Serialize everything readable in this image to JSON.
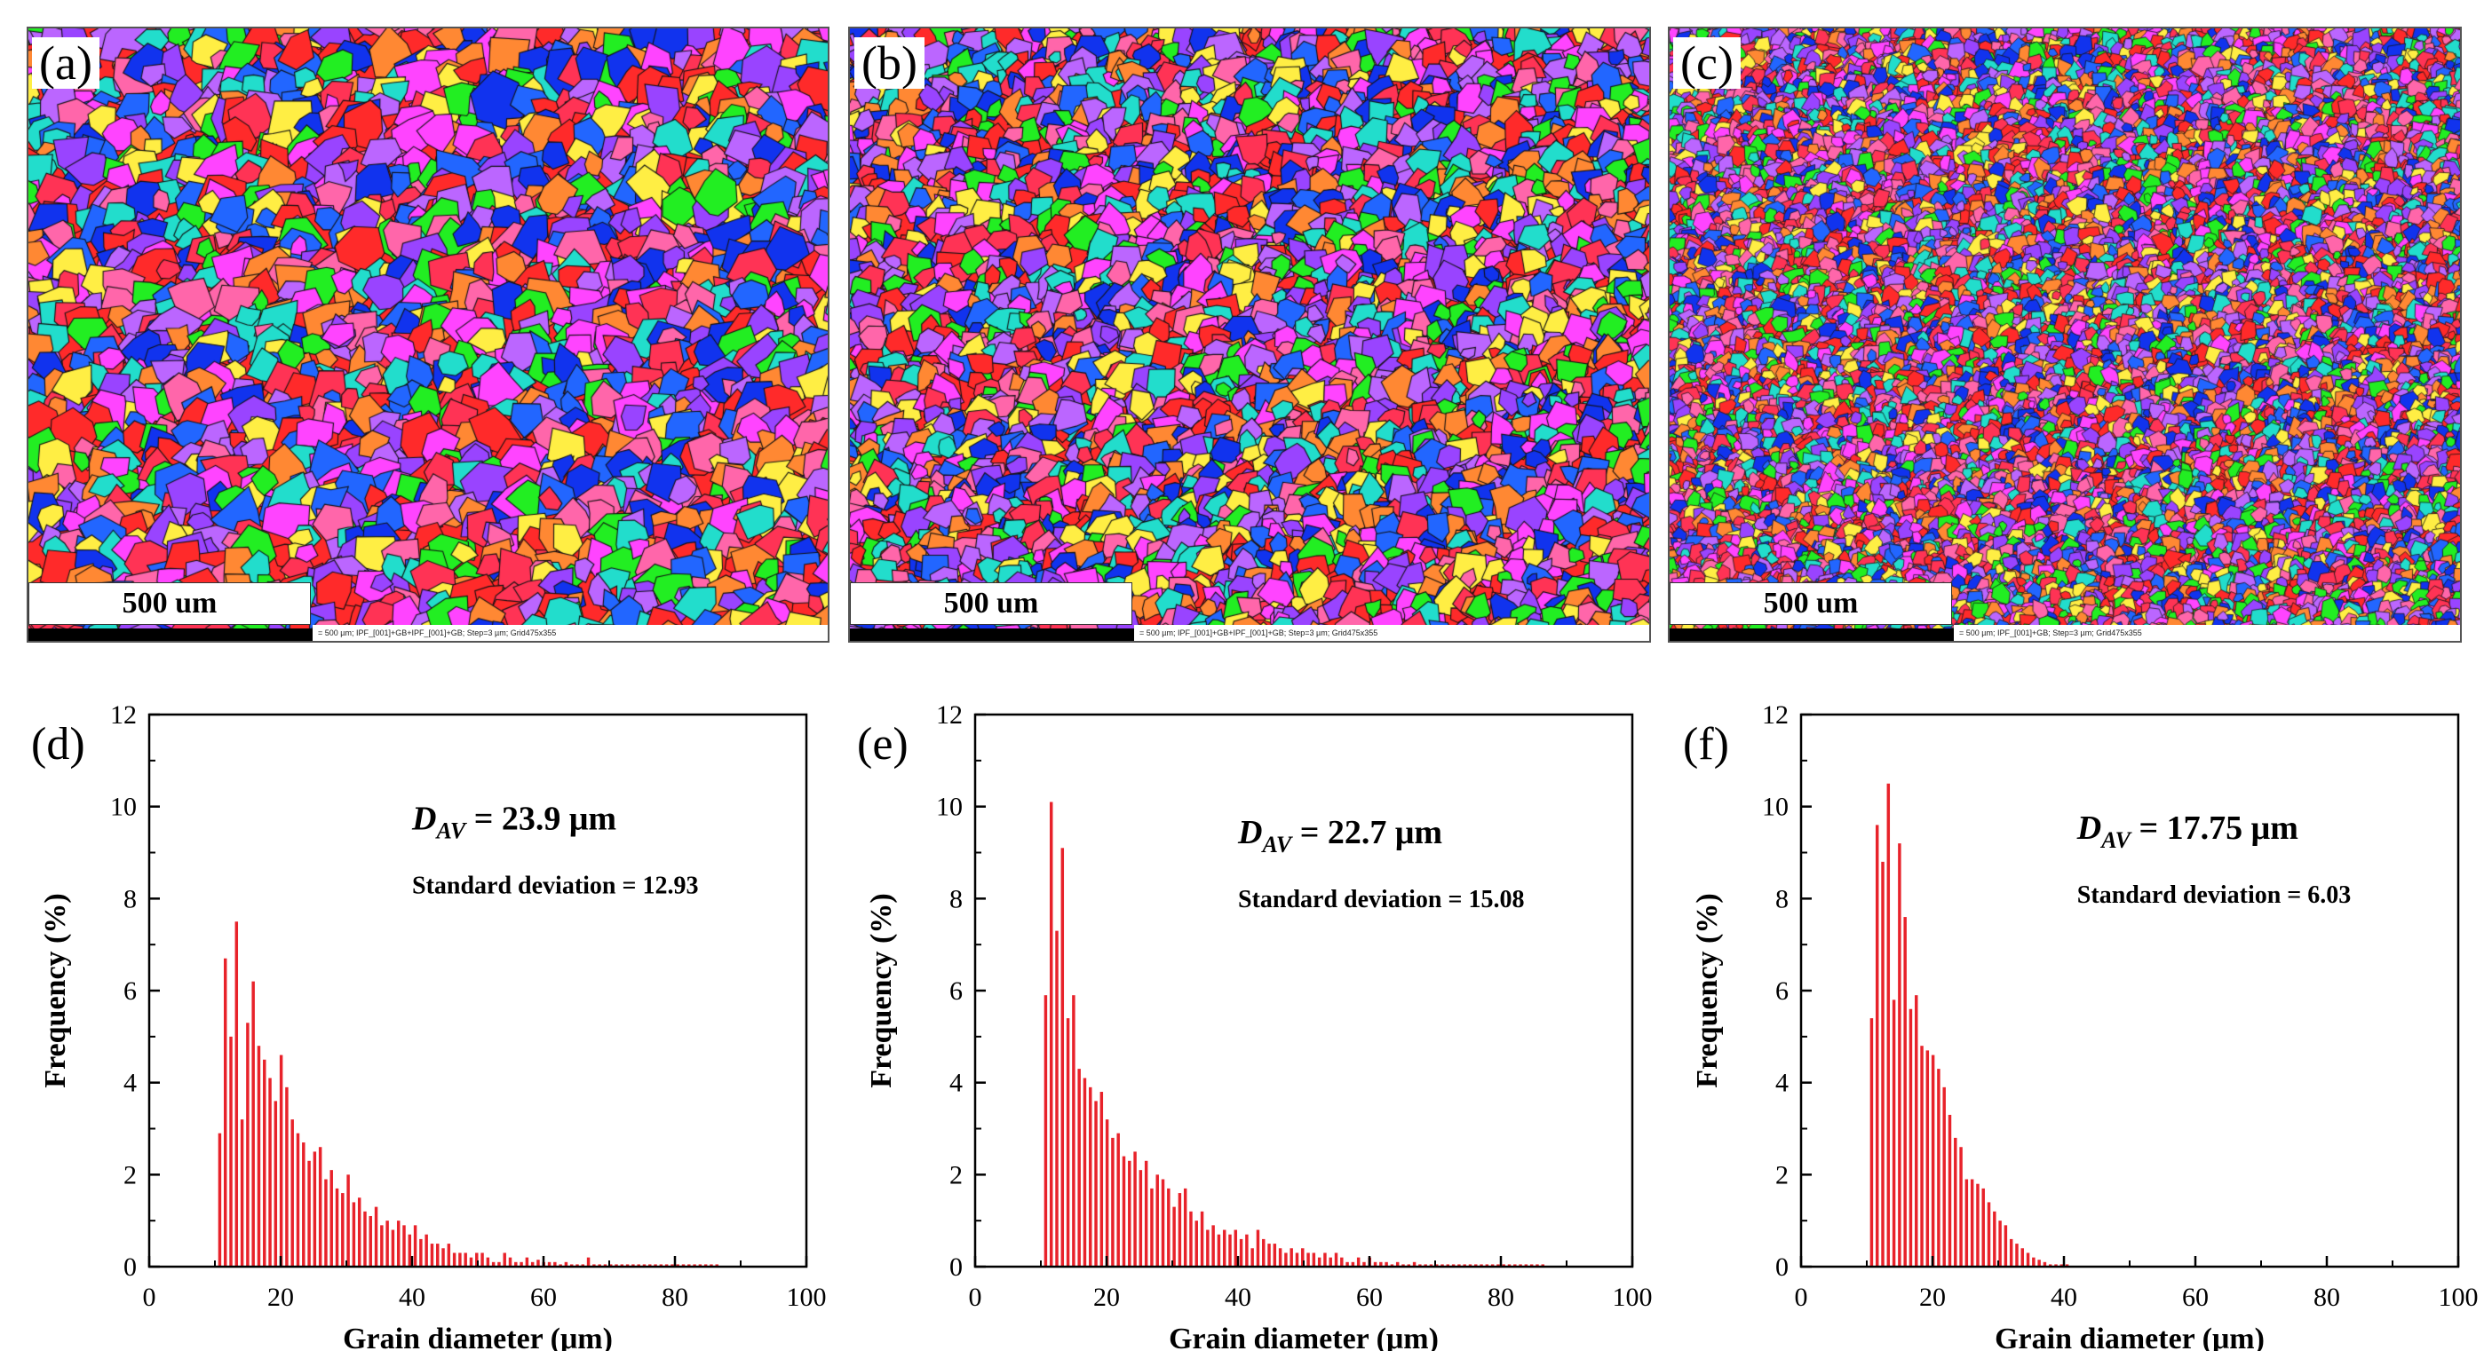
{
  "panels_top": [
    {
      "label": "(a)",
      "scale_text": "500 um",
      "footer": "= 500 µm; IPF_[001]+GB+IPF_[001]+GB; Step=3 µm; Grid475x355",
      "colors": [
        "#ff2a2a",
        "#ff3355",
        "#22ee22",
        "#2266ff",
        "#1133ee",
        "#ff44ff",
        "#9944ff",
        "#22ddcc",
        "#ff8833",
        "#ffee44",
        "#bb66ff",
        "#ff66aa"
      ],
      "grain": 34
    },
    {
      "label": "(b)",
      "scale_text": "500 um",
      "footer": "= 500 µm; IPF_[001]+GB+IPF_[001]+GB; Step=3 µm; Grid475x355",
      "colors": [
        "#ff2a2a",
        "#ff3355",
        "#22ee22",
        "#2266ff",
        "#1133ee",
        "#ff44ff",
        "#9944ff",
        "#22ddcc",
        "#ff8833",
        "#ffee44",
        "#bb66ff",
        "#ff66aa"
      ],
      "grain": 26
    },
    {
      "label": "(c)",
      "scale_text": "500 um",
      "footer": "= 500 µm; IPF_[001]+GB; Step=3 µm; Grid475x355",
      "colors": [
        "#ff2a2a",
        "#ff3355",
        "#22ee22",
        "#2266ff",
        "#1133ee",
        "#ff44ff",
        "#9944ff",
        "#22ddcc",
        "#ff8833",
        "#ffee44",
        "#bb66ff",
        "#ff66aa"
      ],
      "grain": 15
    }
  ],
  "chart_data": [
    {
      "type": "bar",
      "label": "(d)",
      "xlabel": "Grain diameter (μm)",
      "ylabel": "Frequency (%)",
      "xlim": [
        0,
        100
      ],
      "ylim": [
        0,
        12
      ],
      "xticks": [
        "0",
        "20",
        "40",
        "60",
        "80",
        "100"
      ],
      "yticks": [
        "0",
        "2",
        "4",
        "6",
        "8",
        "10",
        "12"
      ],
      "annotation_main": "D",
      "annotation_sub": "AV",
      "annotation_value": " = 23.9 μm",
      "annotation_std": "Standard deviation = 12.93",
      "bar_color": "#e8222a",
      "bin_start": 10.5,
      "bin_width": 0.85,
      "values": [
        2.9,
        6.7,
        5.0,
        7.5,
        3.2,
        5.3,
        6.2,
        4.8,
        4.5,
        4.1,
        3.6,
        4.6,
        3.9,
        3.2,
        2.9,
        2.7,
        2.3,
        2.5,
        2.6,
        1.9,
        2.1,
        1.7,
        1.6,
        2.0,
        1.4,
        1.5,
        1.2,
        1.1,
        1.3,
        0.9,
        1.0,
        0.8,
        1.0,
        0.9,
        0.7,
        0.9,
        0.6,
        0.7,
        0.5,
        0.5,
        0.4,
        0.5,
        0.3,
        0.3,
        0.3,
        0.2,
        0.3,
        0.3,
        0.2,
        0.1,
        0.1,
        0.3,
        0.2,
        0.1,
        0.1,
        0.2,
        0.1,
        0.15,
        0.1,
        0.1,
        0.1,
        0.05,
        0.1,
        0.05,
        0.05,
        0.05,
        0.2,
        0.05,
        0.05,
        0.05,
        0.05,
        0.05,
        0.05,
        0.05,
        0.05,
        0.05,
        0.05,
        0.05,
        0.05,
        0.05,
        0.05,
        0.05,
        0.05,
        0.05,
        0.05,
        0.05,
        0.05,
        0.05,
        0.05,
        0.05
      ],
      "ann_x": 40,
      "ann_y": 9.5
    },
    {
      "type": "bar",
      "label": "(e)",
      "xlabel": "Grain diameter (μm)",
      "ylabel": "Frequency (%)",
      "xlim": [
        0,
        100
      ],
      "ylim": [
        0,
        12
      ],
      "xticks": [
        "0",
        "20",
        "40",
        "60",
        "80",
        "100"
      ],
      "yticks": [
        "0",
        "2",
        "4",
        "6",
        "8",
        "10",
        "12"
      ],
      "annotation_main": "D",
      "annotation_sub": "AV",
      "annotation_value": " = 22.7 μm",
      "annotation_std": "Standard deviation = 15.08",
      "bar_color": "#e8222a",
      "bin_start": 10.5,
      "bin_width": 0.85,
      "values": [
        5.9,
        10.1,
        7.3,
        9.1,
        5.4,
        5.9,
        4.3,
        4.1,
        3.9,
        3.6,
        3.8,
        3.2,
        2.8,
        2.9,
        2.4,
        2.3,
        2.5,
        2.1,
        2.3,
        1.7,
        2.0,
        1.9,
        1.7,
        1.3,
        1.6,
        1.7,
        1.2,
        1.0,
        1.2,
        0.8,
        0.9,
        0.7,
        0.8,
        0.7,
        0.8,
        0.6,
        0.7,
        0.4,
        0.8,
        0.6,
        0.5,
        0.5,
        0.4,
        0.3,
        0.4,
        0.3,
        0.4,
        0.3,
        0.3,
        0.2,
        0.3,
        0.2,
        0.3,
        0.2,
        0.1,
        0.1,
        0.2,
        0.1,
        0.2,
        0.1,
        0.1,
        0.1,
        0.05,
        0.1,
        0.05,
        0.05,
        0.1,
        0.05,
        0.05,
        0.05,
        0.05,
        0.05,
        0.05,
        0.05,
        0.05,
        0.05,
        0.05,
        0.05,
        0.05,
        0.05,
        0.05,
        0.05,
        0.05,
        0.05,
        0.05,
        0.05,
        0.05,
        0.05,
        0.05,
        0.05
      ],
      "ann_x": 40,
      "ann_y": 9.2
    },
    {
      "type": "bar",
      "label": "(f)",
      "xlabel": "Grain diameter (μm)",
      "ylabel": "Frequency (%)",
      "xlim": [
        0,
        100
      ],
      "ylim": [
        0,
        12
      ],
      "xticks": [
        "0",
        "20",
        "40",
        "60",
        "80",
        "100"
      ],
      "yticks": [
        "0",
        "2",
        "4",
        "6",
        "8",
        "10",
        "12"
      ],
      "annotation_main": "D",
      "annotation_sub": "AV",
      "annotation_value": " = 17.75 μm",
      "annotation_std": "Standard deviation = 6.03",
      "bar_color": "#e8222a",
      "bin_start": 10.5,
      "bin_width": 0.85,
      "values": [
        5.4,
        9.6,
        8.8,
        10.5,
        5.8,
        9.2,
        7.6,
        5.6,
        5.9,
        4.8,
        4.7,
        4.6,
        4.3,
        3.9,
        3.3,
        2.8,
        2.6,
        1.9,
        1.9,
        1.8,
        1.7,
        1.4,
        1.2,
        1.0,
        0.9,
        0.6,
        0.5,
        0.4,
        0.3,
        0.2,
        0.15,
        0.1,
        0.05,
        0.05,
        0.05,
        0.05
      ],
      "ann_x": 42,
      "ann_y": 9.3
    }
  ]
}
